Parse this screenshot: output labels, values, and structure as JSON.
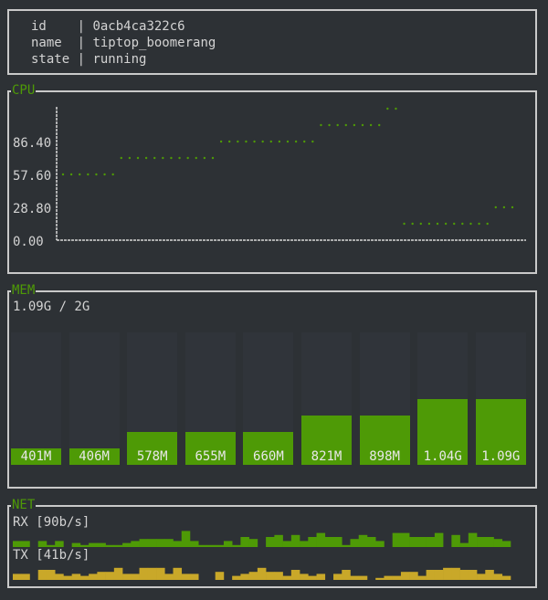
{
  "info": {
    "rows": [
      {
        "key": "id   ",
        "value": "0acb4ca322c6"
      },
      {
        "key": "name ",
        "value": "tiptop_boomerang"
      },
      {
        "key": "state",
        "value": "running"
      }
    ]
  },
  "cpu": {
    "title": "CPU",
    "y_ticks": [
      "86.40",
      "57.60",
      "28.80",
      "0.00"
    ],
    "color": "#4e9a06"
  },
  "chart_data": {
    "type": "scatter",
    "title": "CPU",
    "y_ticks": [
      0,
      28.8,
      57.6,
      86.4
    ],
    "ylim": [
      0,
      120
    ],
    "values": [
      57.6,
      57.6,
      57.6,
      57.6,
      57.6,
      57.6,
      57.6,
      72,
      72,
      72,
      72,
      72,
      72,
      72,
      72,
      72,
      72,
      72,
      72,
      86.4,
      86.4,
      86.4,
      86.4,
      86.4,
      86.4,
      86.4,
      86.4,
      86.4,
      86.4,
      86.4,
      86.4,
      100.8,
      100.8,
      100.8,
      100.8,
      100.8,
      100.8,
      100.8,
      100.8,
      115.2,
      115.2,
      14.4,
      14.4,
      14.4,
      14.4,
      14.4,
      14.4,
      14.4,
      14.4,
      14.4,
      14.4,
      14.4,
      28.8,
      28.8,
      28.8
    ]
  },
  "mem": {
    "title": "MEM",
    "summary": "1.09G / 2G",
    "total_mb": 2048,
    "bars": [
      {
        "label": "401M",
        "mb": 401
      },
      {
        "label": "406M",
        "mb": 406
      },
      {
        "label": "578M",
        "mb": 578
      },
      {
        "label": "655M",
        "mb": 655
      },
      {
        "label": "660M",
        "mb": 660
      },
      {
        "label": "821M",
        "mb": 821
      },
      {
        "label": "898M",
        "mb": 898
      },
      {
        "label": "1.04G",
        "mb": 1065
      },
      {
        "label": "1.09G",
        "mb": 1116
      }
    ],
    "color": "#4e9a06"
  },
  "net": {
    "title": "NET",
    "rx_label": "RX [90b/s]",
    "tx_label": "TX [41b/s]",
    "rx_color": "#4e9a06",
    "tx_color": "#c9a829",
    "rx_levels": [
      3,
      3,
      0,
      3,
      1,
      3,
      0,
      2,
      1,
      2,
      2,
      1,
      1,
      2,
      3,
      4,
      4,
      4,
      4,
      3,
      8,
      3,
      1,
      1,
      1,
      3,
      1,
      5,
      4,
      0,
      5,
      6,
      3,
      6,
      3,
      5,
      7,
      5,
      5,
      1,
      4,
      6,
      5,
      3,
      0,
      7,
      7,
      5,
      5,
      5,
      7,
      0,
      6,
      2,
      7,
      5,
      5,
      4,
      3
    ],
    "tx_levels": [
      3,
      3,
      0,
      5,
      5,
      3,
      2,
      3,
      2,
      3,
      4,
      4,
      6,
      3,
      3,
      6,
      6,
      6,
      3,
      6,
      3,
      3,
      0,
      0,
      4,
      0,
      2,
      3,
      4,
      6,
      4,
      4,
      2,
      5,
      3,
      2,
      3,
      0,
      3,
      5,
      2,
      2,
      0,
      1,
      2,
      2,
      4,
      4,
      2,
      5,
      5,
      6,
      6,
      5,
      5,
      3,
      5,
      3,
      2
    ]
  }
}
